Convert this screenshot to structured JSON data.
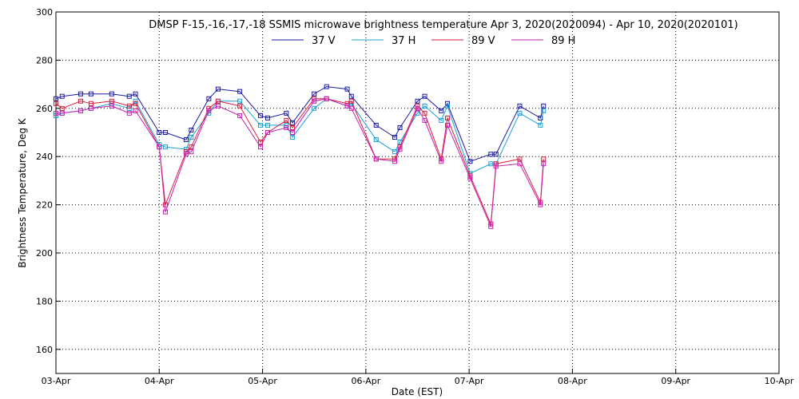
{
  "chart_data": {
    "type": "line",
    "title": "DMSP F-15,-16,-17,-18 SSMIS microwave brightness temperature Apr  3, 2020(2020094) - Apr 10, 2020(2020101)",
    "xlabel": "Date (EST)",
    "ylabel": "Brightness Temperature, Deg K",
    "xlim": [
      0,
      7
    ],
    "ylim": [
      150,
      300
    ],
    "x_ticks": [
      0,
      1,
      2,
      3,
      4,
      5,
      6,
      7
    ],
    "x_tick_labels": [
      "03-Apr",
      "04-Apr",
      "05-Apr",
      "06-Apr",
      "07-Apr",
      "08-Apr",
      "09-Apr",
      "10-Apr"
    ],
    "y_ticks": [
      160,
      180,
      200,
      220,
      240,
      260,
      280,
      300
    ],
    "grid": true,
    "legend_position": "top-center",
    "series": [
      {
        "name": "37 V",
        "color": "#1a1aa6",
        "x": [
          0.0,
          0.06,
          0.24,
          0.34,
          0.54,
          0.71,
          0.77,
          1.0,
          1.06,
          1.26,
          1.31,
          1.48,
          1.57,
          1.78,
          1.98,
          2.05,
          2.23,
          2.29,
          2.5,
          2.62,
          2.82,
          2.86,
          3.1,
          3.28,
          3.33,
          3.5,
          3.57,
          3.73,
          3.79,
          4.01,
          4.21,
          4.26,
          4.49,
          4.69,
          4.72
        ],
        "y": [
          264,
          265,
          266,
          266,
          266,
          265,
          266,
          250,
          250,
          247,
          251,
          264,
          268,
          267,
          257,
          256,
          258,
          254,
          266,
          269,
          268,
          265,
          253,
          248,
          252,
          263,
          265,
          259,
          262,
          238,
          241,
          241,
          261,
          256,
          261
        ]
      },
      {
        "name": "37 H",
        "color": "#1aa0d6",
        "x": [
          0.0,
          0.06,
          0.24,
          0.34,
          0.54,
          0.71,
          0.77,
          1.0,
          1.06,
          1.26,
          1.31,
          1.48,
          1.57,
          1.78,
          1.98,
          2.05,
          2.23,
          2.29,
          2.5,
          2.62,
          2.82,
          2.86,
          3.1,
          3.28,
          3.33,
          3.5,
          3.57,
          3.73,
          3.79,
          4.01,
          4.21,
          4.26,
          4.49,
          4.69,
          4.72
        ],
        "y": [
          257,
          258,
          259,
          260,
          262,
          260,
          263,
          245,
          244,
          243,
          248,
          258,
          263,
          263,
          253,
          253,
          253,
          248,
          260,
          264,
          261,
          262,
          247,
          242,
          246,
          258,
          261,
          255,
          261,
          233,
          237,
          237,
          258,
          253,
          259
        ]
      },
      {
        "name": "89 V",
        "color": "#d81e3c",
        "x": [
          0.0,
          0.06,
          0.24,
          0.34,
          0.54,
          0.71,
          0.77,
          1.0,
          1.06,
          1.26,
          1.31,
          1.48,
          1.57,
          1.78,
          1.98,
          2.05,
          2.23,
          2.29,
          2.5,
          2.62,
          2.82,
          2.86,
          3.1,
          3.28,
          3.33,
          3.5,
          3.57,
          3.73,
          3.79,
          4.01,
          4.21,
          4.26,
          4.49,
          4.69,
          4.72
        ],
        "y": [
          262,
          260,
          263,
          262,
          263,
          261,
          262,
          244,
          220,
          242,
          244,
          260,
          263,
          261,
          246,
          250,
          255,
          252,
          264,
          264,
          262,
          263,
          239,
          239,
          244,
          261,
          258,
          239,
          256,
          232,
          212,
          237,
          239,
          221,
          239
        ]
      },
      {
        "name": "89 H",
        "color": "#c81eb4",
        "x": [
          0.0,
          0.06,
          0.24,
          0.34,
          0.54,
          0.71,
          0.77,
          1.0,
          1.06,
          1.26,
          1.31,
          1.48,
          1.57,
          1.78,
          1.98,
          2.05,
          2.23,
          2.29,
          2.5,
          2.62,
          2.82,
          2.86,
          3.1,
          3.28,
          3.33,
          3.5,
          3.57,
          3.73,
          3.79,
          4.01,
          4.21,
          4.26,
          4.49,
          4.69,
          4.72
        ],
        "y": [
          258,
          258,
          259,
          260,
          261,
          258,
          259,
          244,
          217,
          241,
          242,
          259,
          261,
          257,
          244,
          250,
          252,
          250,
          263,
          264,
          261,
          260,
          239,
          238,
          243,
          260,
          255,
          238,
          253,
          231,
          211,
          236,
          237,
          220,
          237
        ]
      }
    ]
  }
}
